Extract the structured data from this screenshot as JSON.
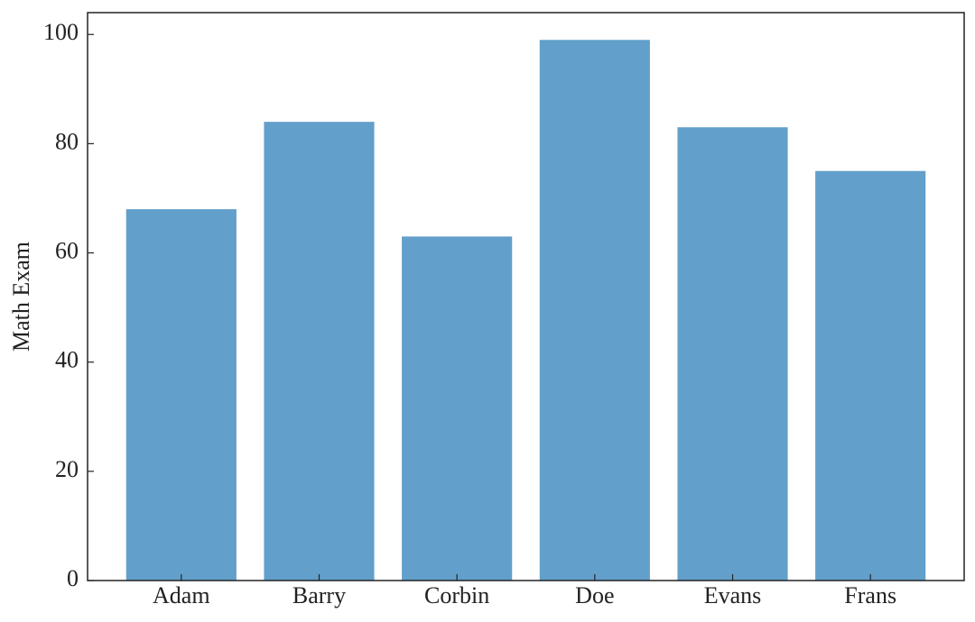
{
  "chart_data": {
    "type": "bar",
    "ylabel": "Math Exam",
    "categories": [
      "Adam",
      "Barry",
      "Corbin",
      "Doe",
      "Evans",
      "Frans"
    ],
    "values": [
      68,
      84,
      63,
      99,
      83,
      75
    ],
    "color": "#629fca",
    "ylim": [
      0,
      104
    ],
    "yticks": [
      0,
      20,
      40,
      60,
      80,
      100
    ],
    "grid": false
  }
}
